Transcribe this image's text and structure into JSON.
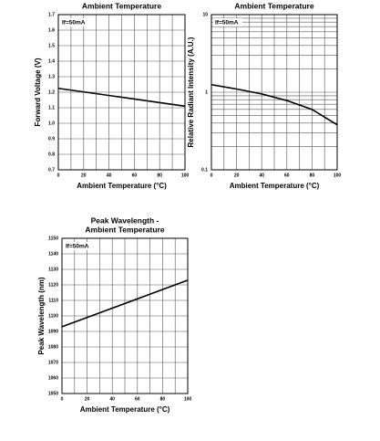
{
  "chart_data": [
    {
      "type": "line",
      "title": [
        "Ambient Temperature"
      ],
      "annotation": "If=50mA",
      "x_label": "Ambient Temperature (°C)",
      "y_label": "Forward Voltage (V)",
      "xlim": [
        0,
        100
      ],
      "xticks": [
        0,
        20,
        40,
        60,
        80,
        100
      ],
      "xminor": [
        10,
        30,
        50,
        70,
        90
      ],
      "ylim": [
        0.7,
        1.7
      ],
      "yticks": [
        {
          "value": 0.7,
          "label": "0.7"
        },
        {
          "value": 0.8,
          "label": "0.8"
        },
        {
          "value": 0.9,
          "label": "0.9"
        },
        {
          "value": 1.0,
          "label": "1.0"
        },
        {
          "value": 1.1,
          "label": "1.1"
        },
        {
          "value": 1.2,
          "label": "1.2"
        },
        {
          "value": 1.3,
          "label": "1.3"
        },
        {
          "value": 1.4,
          "label": "1.4"
        },
        {
          "value": 1.5,
          "label": "1.5"
        },
        {
          "value": 1.6,
          "label": "1.6"
        },
        {
          "value": 1.7,
          "label": "1.7"
        }
      ],
      "log": false,
      "grid": true,
      "color": "#000000",
      "x": [
        0,
        100
      ],
      "values": [
        1.225,
        1.11
      ]
    },
    {
      "type": "line",
      "title": [
        "Ambient Temperature"
      ],
      "annotation": "If=50mA",
      "x_label": "Ambient Temperature (°C)",
      "y_label": "Relative Radiant Intensity (A.U.)",
      "xlim": [
        0,
        100
      ],
      "xticks": [
        0,
        20,
        40,
        60,
        80,
        100
      ],
      "xminor": [
        10,
        30,
        50,
        70,
        90
      ],
      "ylim": [
        0.1,
        10
      ],
      "yticks": [
        0.1,
        1,
        10
      ],
      "yminor": [
        0.2,
        0.3,
        0.4,
        0.5,
        0.6,
        0.7,
        0.8,
        0.9,
        2,
        3,
        4,
        5,
        6,
        7,
        8,
        9
      ],
      "log": true,
      "grid": true,
      "color": "#000000",
      "x": [
        0,
        20,
        40,
        60,
        80,
        100
      ],
      "values": [
        1.25,
        1.1,
        0.95,
        0.78,
        0.6,
        0.38
      ]
    },
    {
      "type": "line",
      "title": [
        "Peak Wavelength -",
        "Ambient Temperature"
      ],
      "annotation": "If=50mA",
      "x_label": "Ambient Temperature (°C)",
      "y_label": "Peak Wavelength (nm)",
      "xlim": [
        0,
        100
      ],
      "xticks": [
        0,
        20,
        40,
        60,
        80,
        100
      ],
      "xminor": [
        10,
        30,
        50,
        70,
        90
      ],
      "ylim": [
        1050,
        1150
      ],
      "yticks": [
        1050,
        1060,
        1070,
        1080,
        1090,
        1100,
        1110,
        1120,
        1130,
        1140,
        1150
      ],
      "log": false,
      "grid": true,
      "color": "#000000",
      "x": [
        0,
        100
      ],
      "values": [
        1093,
        1123
      ]
    }
  ]
}
